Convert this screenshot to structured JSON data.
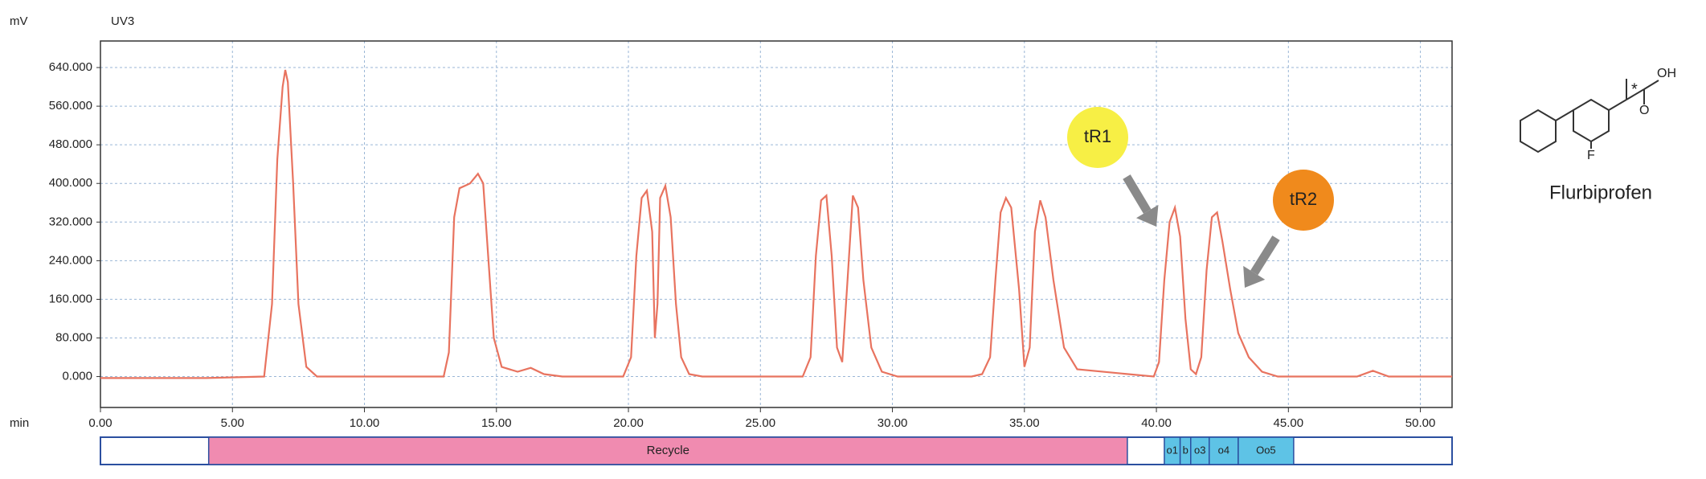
{
  "chart_data": {
    "type": "line",
    "y_unit": "mV",
    "x_unit": "min",
    "detector": "UV3",
    "x": [
      0,
      4,
      6.2,
      6.5,
      6.7,
      6.9,
      7.0,
      7.1,
      7.3,
      7.5,
      7.8,
      8.2,
      13,
      13.2,
      13.4,
      13.6,
      13.8,
      14.0,
      14.3,
      14.5,
      14.7,
      14.9,
      15.2,
      15.8,
      16.3,
      16.8,
      17.5,
      19.8,
      20.1,
      20.3,
      20.5,
      20.7,
      20.9,
      21.0,
      21.1,
      21.2,
      21.4,
      21.6,
      21.8,
      22.0,
      22.3,
      22.8,
      26.6,
      26.9,
      27.1,
      27.3,
      27.5,
      27.7,
      27.9,
      28.1,
      28.3,
      28.5,
      28.7,
      28.9,
      29.2,
      29.6,
      30.2,
      33.0,
      33.4,
      33.7,
      33.9,
      34.1,
      34.3,
      34.5,
      34.8,
      35.0,
      35.2,
      35.4,
      35.6,
      35.8,
      36.1,
      36.5,
      37.0,
      39.9,
      40.1,
      40.3,
      40.5,
      40.7,
      40.9,
      41.1,
      41.3,
      41.5,
      41.7,
      41.9,
      42.1,
      42.3,
      42.5,
      42.8,
      43.1,
      43.5,
      44.0,
      44.6,
      45.5,
      47.6,
      48.2,
      48.8,
      51.2
    ],
    "series": [
      {
        "color": "#e8735f",
        "values": [
          -3,
          -3,
          0,
          150,
          450,
          600,
          635,
          610,
          400,
          150,
          20,
          0,
          0,
          50,
          330,
          390,
          395,
          400,
          420,
          400,
          240,
          80,
          20,
          10,
          18,
          5,
          0,
          0,
          40,
          250,
          370,
          385,
          300,
          80,
          150,
          370,
          395,
          330,
          150,
          40,
          5,
          0,
          0,
          40,
          250,
          365,
          375,
          250,
          60,
          30,
          200,
          375,
          350,
          200,
          60,
          10,
          0,
          0,
          5,
          40,
          200,
          340,
          370,
          350,
          180,
          20,
          60,
          300,
          365,
          330,
          200,
          60,
          15,
          0,
          30,
          200,
          320,
          350,
          290,
          120,
          15,
          5,
          40,
          220,
          330,
          340,
          280,
          180,
          90,
          40,
          10,
          0,
          0,
          0,
          12,
          0,
          0
        ]
      }
    ],
    "xlim": [
      0,
      51.2
    ],
    "ylim": [
      -64,
      695
    ],
    "xticks": [
      {
        "value": 0,
        "label": "0.00"
      },
      {
        "value": 5,
        "label": "5.00"
      },
      {
        "value": 10,
        "label": "10.00"
      },
      {
        "value": 15,
        "label": "15.00"
      },
      {
        "value": 20,
        "label": "20.00"
      },
      {
        "value": 25,
        "label": "25.00"
      },
      {
        "value": 30,
        "label": "30.00"
      },
      {
        "value": 35,
        "label": "35.00"
      },
      {
        "value": 40,
        "label": "40.00"
      },
      {
        "value": 45,
        "label": "45.00"
      },
      {
        "value": 50,
        "label": "50.00"
      }
    ],
    "yticks": [
      {
        "value": 0,
        "label": "0.000"
      },
      {
        "value": 80,
        "label": "80.000"
      },
      {
        "value": 160,
        "label": "160.000"
      },
      {
        "value": 240,
        "label": "240.000"
      },
      {
        "value": 320,
        "label": "320.000"
      },
      {
        "value": 400,
        "label": "400.000"
      },
      {
        "value": 480,
        "label": "480.000"
      },
      {
        "value": 560,
        "label": "560.000"
      },
      {
        "value": 640,
        "label": "640.000"
      }
    ],
    "grid": true,
    "annotations": [
      {
        "text": "tR1",
        "color": "#f7ef45"
      },
      {
        "text": "tR2",
        "color": "#f08a1c"
      }
    ],
    "fractions": [
      {
        "label": "Recycle",
        "start": 4.1,
        "end": 38.9,
        "color": "#f08bb0"
      },
      {
        "label": "o1",
        "start": 40.3,
        "end": 40.9,
        "color": "#5ec3e6"
      },
      {
        "label": "b",
        "start": 40.9,
        "end": 41.3,
        "color": "#5ec3e6"
      },
      {
        "label": "o3",
        "start": 41.3,
        "end": 42.0,
        "color": "#5ec3e6"
      },
      {
        "label": "o4",
        "start": 42.0,
        "end": 43.1,
        "color": "#5ec3e6"
      },
      {
        "label": "Oo5",
        "start": 43.1,
        "end": 45.2,
        "color": "#5ec3e6"
      }
    ]
  },
  "molecule": {
    "name": "Flurbiprofen",
    "atoms": [
      "OH",
      "O",
      "F",
      "*"
    ]
  }
}
